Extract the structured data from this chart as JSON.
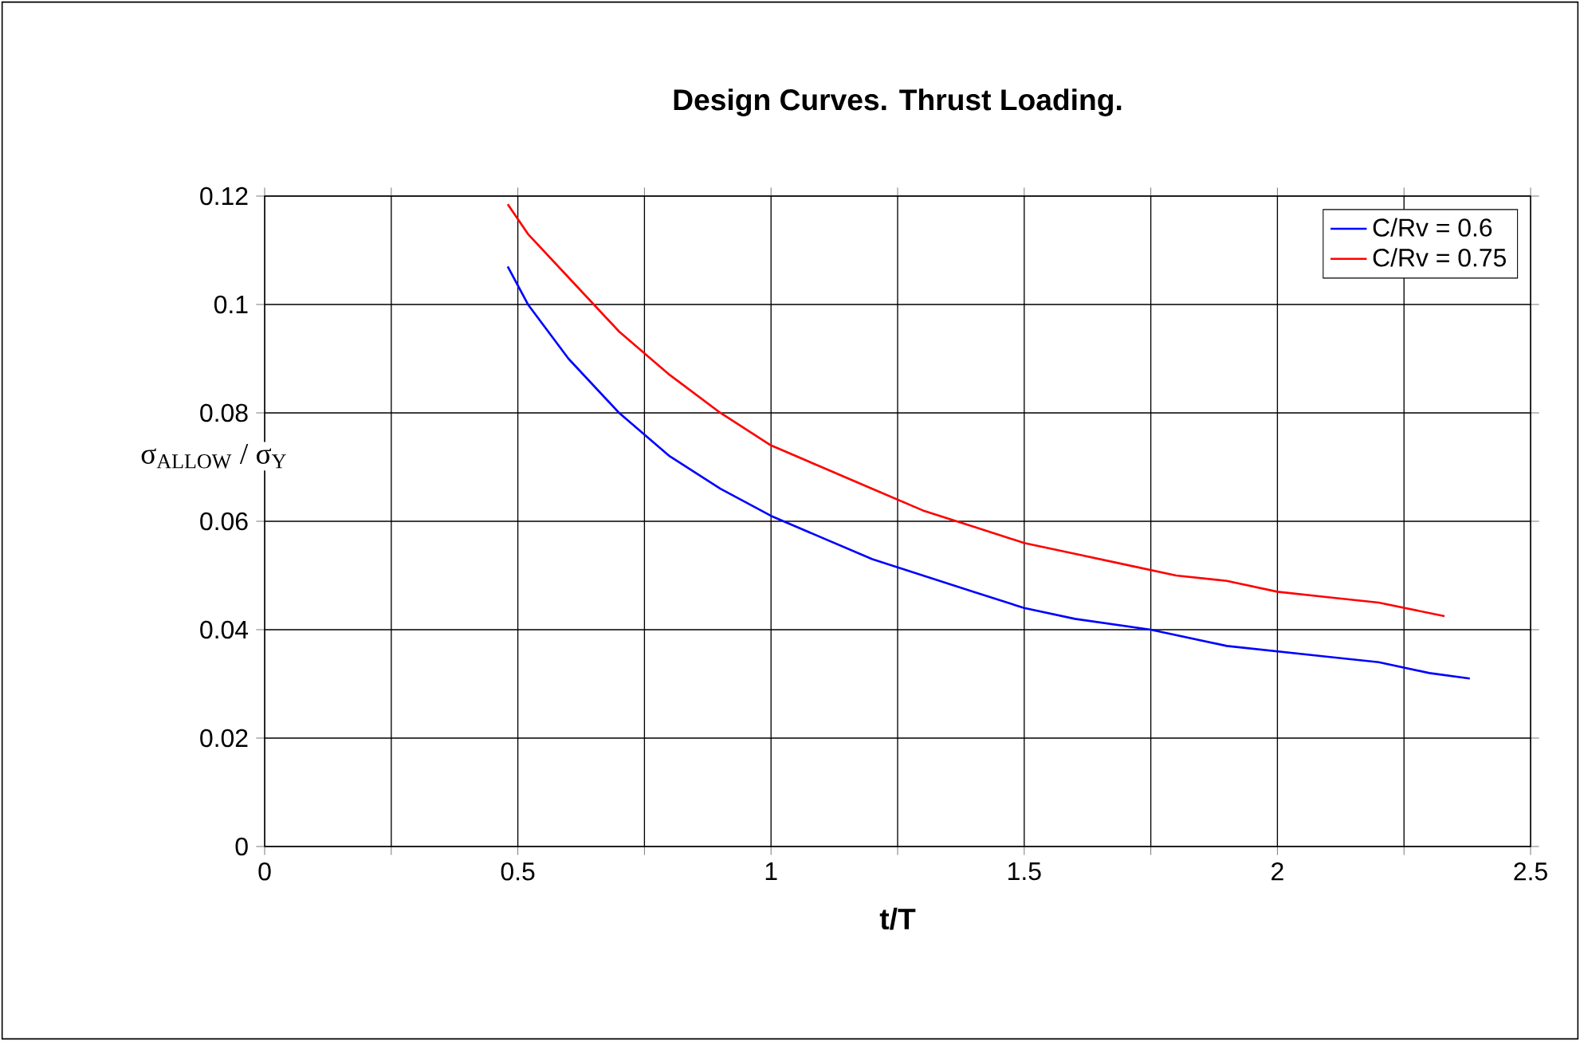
{
  "chart_data": {
    "type": "line",
    "title": "Design Curves. Thrust Loading.",
    "xlabel": "t/T",
    "ylabel": "σ$_{ALLOW}$ / σ$_{Y}$",
    "xlim": [
      0,
      2.5
    ],
    "ylim": [
      0,
      0.12
    ],
    "xticks": [
      0,
      {
        "value": 0.25,
        "label": null
      },
      0.5,
      {
        "value": 0.75,
        "label": null
      },
      1,
      {
        "value": 1.25,
        "label": null
      },
      1.5,
      {
        "value": 1.75,
        "label": null
      },
      2,
      {
        "value": 2.25,
        "label": null
      },
      2.5
    ],
    "yticks": [
      0,
      0.02,
      0.04,
      0.06,
      0.08,
      0.1,
      0.12
    ],
    "grid": true,
    "legend": "top right",
    "marker": "none",
    "line_style": "solid",
    "series": [
      {
        "name": "C/Rv = 0.6",
        "color": "#0000ff",
        "x": [
          0.48,
          0.52,
          0.6,
          0.7,
          0.8,
          0.9,
          1.0,
          1.1,
          1.2,
          1.3,
          1.4,
          1.5,
          1.6,
          1.75,
          1.9,
          2.0,
          2.1,
          2.2,
          2.3,
          2.38
        ],
        "values": [
          0.107,
          0.1,
          0.09,
          0.08,
          0.072,
          0.066,
          0.061,
          0.057,
          0.053,
          0.05,
          0.047,
          0.044,
          0.042,
          0.04,
          0.037,
          0.036,
          0.035,
          0.034,
          0.032,
          0.031
        ]
      },
      {
        "name": "C/Rv = 0.75",
        "color": "#ff0000",
        "x": [
          0.48,
          0.52,
          0.6,
          0.7,
          0.8,
          0.9,
          1.0,
          1.1,
          1.2,
          1.3,
          1.4,
          1.5,
          1.6,
          1.7,
          1.8,
          1.9,
          2.0,
          2.1,
          2.2,
          2.33
        ],
        "values": [
          0.1185,
          0.113,
          0.105,
          0.095,
          0.087,
          0.08,
          0.074,
          0.07,
          0.066,
          0.062,
          0.059,
          0.056,
          0.054,
          0.052,
          0.05,
          0.049,
          0.047,
          0.046,
          0.045,
          0.0425
        ]
      }
    ]
  }
}
